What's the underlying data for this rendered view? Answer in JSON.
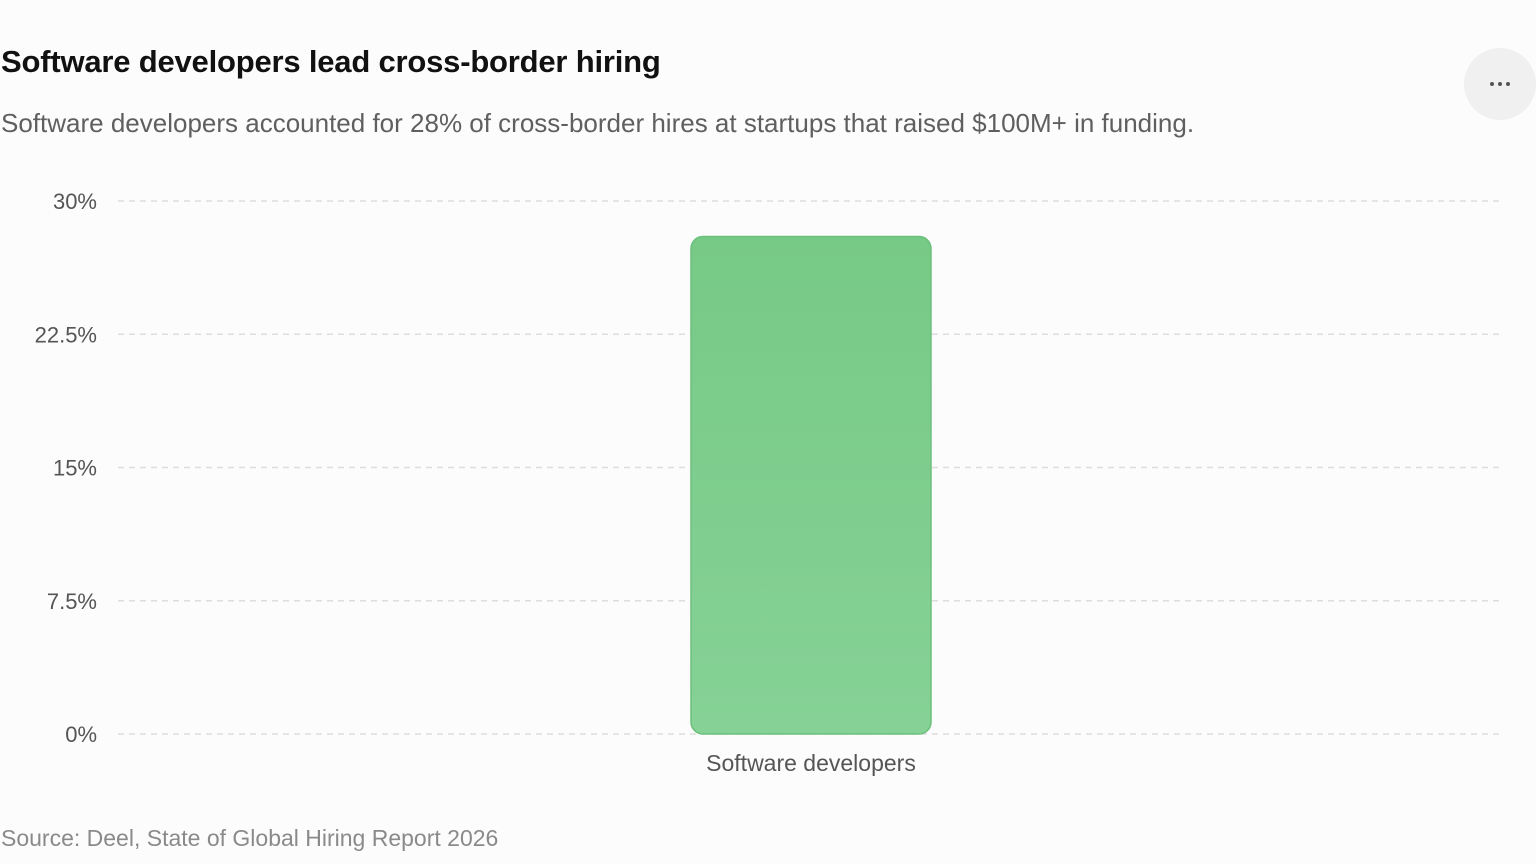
{
  "header": {
    "title": "Software developers lead cross-border hiring",
    "subtitle": "Software developers accounted for 28% of cross-border hires at startups that raised $100M+ in funding.",
    "more_icon": "more-horizontal-icon"
  },
  "footer": {
    "source": "Source: Deel, State of Global Hiring Report 2026"
  },
  "colors": {
    "bar_fill_top": "#77c986",
    "bar_fill_bottom": "#86d296",
    "bar_stroke": "#6cc07c",
    "grid": "#dddddd",
    "tick_text": "#555555"
  },
  "chart_data": {
    "type": "bar",
    "categories": [
      "Software developers"
    ],
    "values": [
      28
    ],
    "ylim": [
      0,
      30
    ],
    "yticks": [
      0,
      7.5,
      15,
      22.5,
      30
    ],
    "ytick_labels": [
      "0%",
      "7.5%",
      "15%",
      "22.5%",
      "30%"
    ],
    "grid": true,
    "grid_style": "dashed",
    "title": "Software developers lead cross-border hiring",
    "xlabel": "",
    "ylabel": ""
  }
}
